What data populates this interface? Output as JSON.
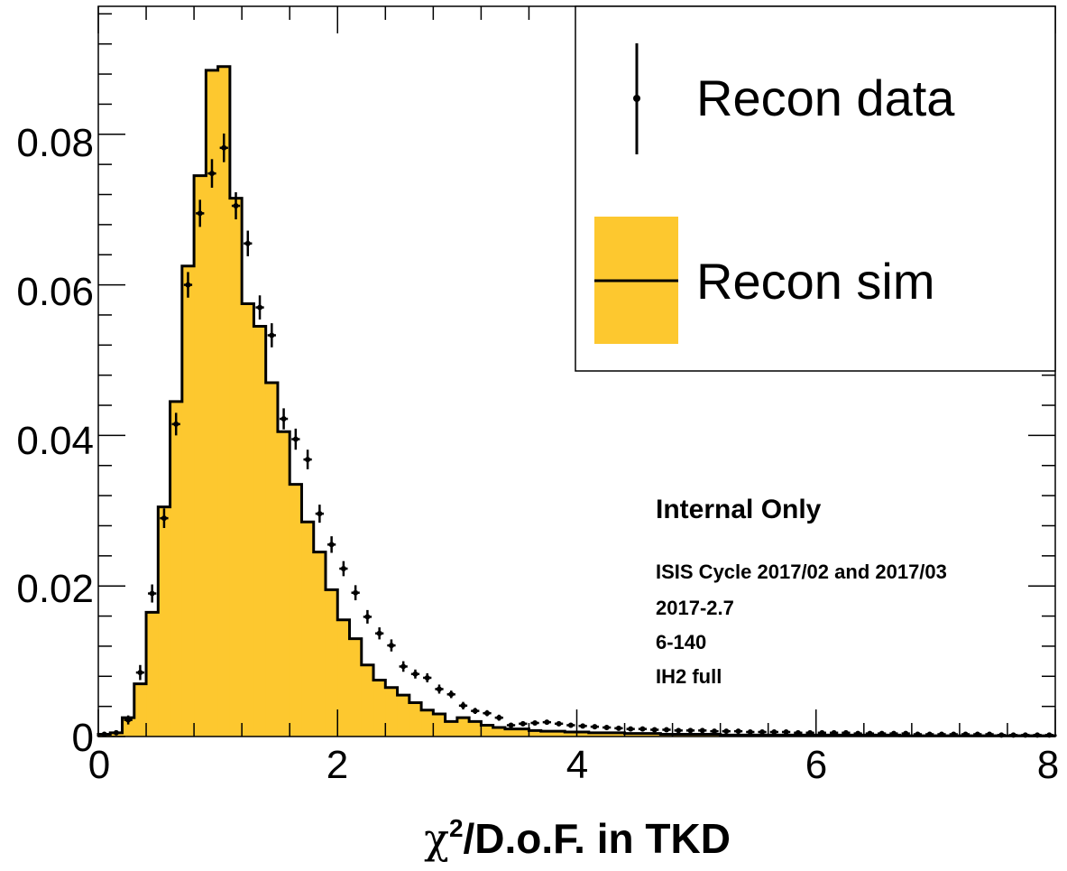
{
  "chart_data": {
    "type": "histogram",
    "title": "",
    "xlabel_parts": {
      "chi": "χ",
      "sup": "2",
      "rest": "/D.o.F. in TKD"
    },
    "ylabel": "",
    "xlim": [
      0,
      8
    ],
    "ylim": [
      0,
      0.097
    ],
    "bin_width": 0.1,
    "x_ticks": [
      "0",
      "2",
      "4",
      "6",
      "8"
    ],
    "y_ticks": [
      "0",
      "0.02",
      "0.04",
      "0.06",
      "0.08"
    ],
    "grid": false,
    "legend": {
      "placement": "top-right",
      "entries": [
        {
          "label": "Recon data",
          "kind": "points"
        },
        {
          "label": "Recon sim",
          "kind": "filled-histogram"
        }
      ]
    },
    "annotations": {
      "heading": "Internal Only",
      "lines": [
        "ISIS Cycle 2017/02 and 2017/03",
        "2017-2.7",
        "6-140",
        "IH2 full"
      ]
    },
    "colors": {
      "sim_fill": "#FDC82F",
      "line": "#000000"
    },
    "series": [
      {
        "name": "Recon sim",
        "values": [
          0.0003,
          0.0005,
          0.0025,
          0.007,
          0.0165,
          0.0305,
          0.0445,
          0.0625,
          0.0745,
          0.0885,
          0.089,
          0.0715,
          0.0575,
          0.0545,
          0.047,
          0.0405,
          0.0335,
          0.0285,
          0.0245,
          0.0195,
          0.0155,
          0.013,
          0.0095,
          0.0075,
          0.0065,
          0.0055,
          0.0045,
          0.0035,
          0.003,
          0.002,
          0.0025,
          0.002,
          0.0015,
          0.0012,
          0.001,
          0.001,
          0.0008,
          0.0007,
          0.0007,
          0.0006,
          0.0006,
          0.0005,
          0.0005,
          0.0005,
          0.0004,
          0.0004,
          0.0004,
          0.0003,
          0.0003,
          0.0003,
          0.0003,
          0.0003,
          0.0002,
          0.0002,
          0.0002,
          0.0002,
          0.0002,
          0.0002,
          0.0002,
          0.0002,
          0.0002,
          0.0002,
          0.0002,
          0.0002,
          0.0002,
          0.0002,
          0.0002,
          0.0001,
          0.0001,
          0.0001,
          0.0001,
          0.0001,
          0.0001,
          0.0001,
          0.0001,
          0.0001,
          0.0001,
          0.0001,
          0.0001,
          0.0001
        ]
      },
      {
        "name": "Recon data",
        "values": [
          0.0003,
          0.0005,
          0.0022,
          0.0085,
          0.019,
          0.029,
          0.0415,
          0.06,
          0.0695,
          0.0748,
          0.0782,
          0.0705,
          0.0655,
          0.057,
          0.0533,
          0.0422,
          0.0395,
          0.0368,
          0.0296,
          0.0255,
          0.0223,
          0.0191,
          0.0159,
          0.0137,
          0.0121,
          0.0093,
          0.0083,
          0.0078,
          0.0063,
          0.0056,
          0.0041,
          0.0034,
          0.0031,
          0.0025,
          0.0015,
          0.0017,
          0.0018,
          0.0019,
          0.0017,
          0.0015,
          0.0014,
          0.0013,
          0.0012,
          0.0011,
          0.001,
          0.001,
          0.0009,
          0.0009,
          0.0008,
          0.0008,
          0.0008,
          0.0007,
          0.0007,
          0.0007,
          0.0006,
          0.0006,
          0.0006,
          0.0006,
          0.0005,
          0.0005,
          0.0005,
          0.0005,
          0.0005,
          0.0004,
          0.0004,
          0.0004,
          0.0004,
          0.0004,
          0.0003,
          0.0003,
          0.0003,
          0.0003,
          0.0003,
          0.0003,
          0.0003,
          0.0002,
          0.0002,
          0.0002,
          0.0002,
          0.0002
        ],
        "errors": [
          0.0002,
          0.0003,
          0.0006,
          0.001,
          0.0012,
          0.0013,
          0.0015,
          0.0017,
          0.0018,
          0.0019,
          0.0019,
          0.0018,
          0.0017,
          0.0016,
          0.0016,
          0.0014,
          0.0014,
          0.0013,
          0.0012,
          0.0011,
          0.001,
          0.001,
          0.0009,
          0.0008,
          0.0008,
          0.0007,
          0.0006,
          0.0006,
          0.0006,
          0.0005,
          0.0005,
          0.0004,
          0.0004,
          0.0004,
          0.0003,
          0.0003,
          0.0003,
          0.0003,
          0.0003,
          0.0003,
          0.0003,
          0.0003,
          0.0002,
          0.0002,
          0.0002,
          0.0002,
          0.0002,
          0.0002,
          0.0002,
          0.0002,
          0.0002,
          0.0002,
          0.0002,
          0.0002,
          0.0002,
          0.0002,
          0.0002,
          0.0002,
          0.0002,
          0.0002,
          0.0002,
          0.0002,
          0.0002,
          0.0002,
          0.0002,
          0.0002,
          0.0002,
          0.0002,
          0.0002,
          0.0002,
          0.0002,
          0.0002,
          0.0002,
          0.0002,
          0.0002,
          0.0002,
          0.0002,
          0.0002,
          0.0002,
          0.0002
        ]
      }
    ]
  }
}
